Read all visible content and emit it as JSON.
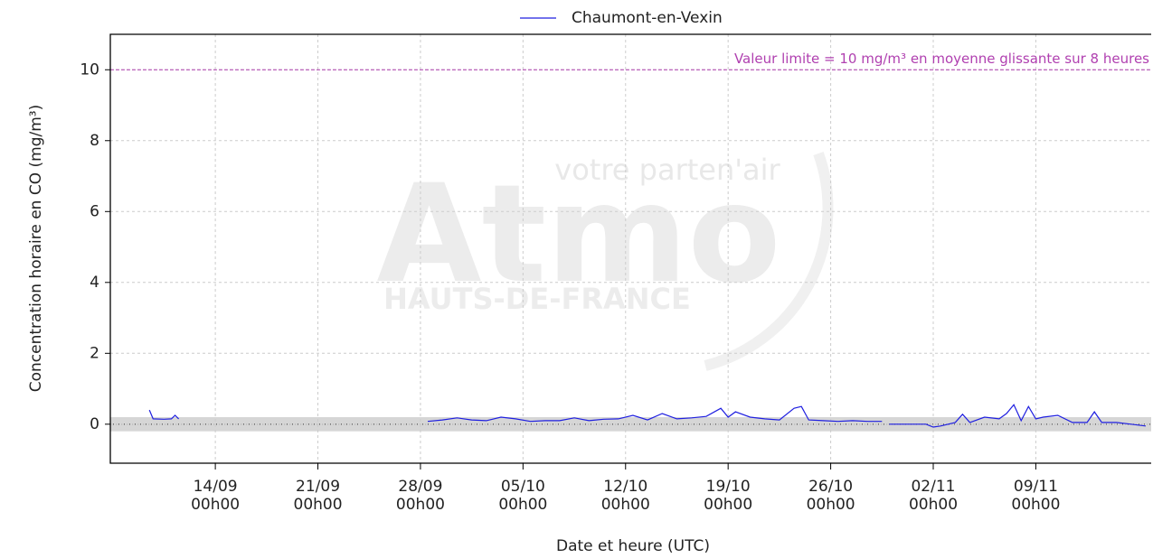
{
  "chart_data": {
    "type": "line",
    "legend": "top",
    "ylabel": "Concentration horaire en CO (mg/m³)",
    "xlabel": "Date et heure (UTC)",
    "watermark": {
      "tagline": "votre parten'air",
      "logo": "Atmo",
      "region": "HAUTS-DE-FRANCE"
    },
    "annotation": {
      "text": "Valeur limite = 10 mg/m³ en moyenne glissante sur 8 heures",
      "value": 10,
      "color": "#b040b0"
    },
    "band": [
      -0.2,
      0.2
    ],
    "grid": true,
    "xlim": [
      "06/09 20h00",
      "16/11 21h00"
    ],
    "ylim": [
      -1.1,
      11
    ],
    "yticks": [
      0,
      2,
      4,
      6,
      8,
      10
    ],
    "xticks": [
      {
        "value": "14/09 00h00",
        "label": [
          "14/09",
          "00h00"
        ]
      },
      {
        "value": "21/09 00h00",
        "label": [
          "21/09",
          "00h00"
        ]
      },
      {
        "value": "28/09 00h00",
        "label": [
          "28/09",
          "00h00"
        ]
      },
      {
        "value": "05/10 00h00",
        "label": [
          "05/10",
          "00h00"
        ]
      },
      {
        "value": "12/10 00h00",
        "label": [
          "12/10",
          "00h00"
        ]
      },
      {
        "value": "19/10 00h00",
        "label": [
          "19/10",
          "00h00"
        ]
      },
      {
        "value": "26/10 00h00",
        "label": [
          "26/10",
          "00h00"
        ]
      },
      {
        "value": "02/11 00h00",
        "label": [
          "02/11",
          "00h00"
        ]
      },
      {
        "value": "09/11 00h00",
        "label": [
          "09/11",
          "00h00"
        ]
      }
    ],
    "x": [
      "09/09 12h00",
      "09/09 18h00",
      "10/09 12h00",
      "11/09 00h00",
      "11/09 06h00",
      "11/09 12h00",
      "12/09 00h00",
      "28/09 12h00",
      "29/09 12h00",
      "30/09 12h00",
      "01/10 12h00",
      "02/10 12h00",
      "03/10 12h00",
      "04/10 12h00",
      "05/10 12h00",
      "06/10 12h00",
      "07/10 12h00",
      "08/10 12h00",
      "09/10 12h00",
      "10/10 12h00",
      "11/10 12h00",
      "12/10 12h00",
      "13/10 12h00",
      "14/10 12h00",
      "15/10 12h00",
      "16/10 12h00",
      "17/10 12h00",
      "18/10 12h00",
      "19/10 00h00",
      "19/10 12h00",
      "20/10 12h00",
      "21/10 12h00",
      "22/10 12h00",
      "23/10 12h00",
      "24/10 00h00",
      "24/10 12h00",
      "25/10 12h00",
      "26/10 12h00",
      "27/10 12h00",
      "28/10 12h00",
      "29/10 12h00",
      "29/10 18h00",
      "30/10 00h00",
      "31/10 12h00",
      "01/11 12h00",
      "02/11 00h00",
      "02/11 12h00",
      "03/11 12h00",
      "04/11 00h00",
      "04/11 12h00",
      "05/11 12h00",
      "06/11 12h00",
      "07/11 00h00",
      "07/11 12h00",
      "08/11 00h00",
      "08/11 12h00",
      "09/11 00h00",
      "09/11 12h00",
      "10/11 12h00",
      "11/11 12h00",
      "12/11 12h00",
      "13/11 00h00",
      "13/11 12h00",
      "14/11 12h00",
      "15/11 12h00",
      "16/11 12h00"
    ],
    "series": [
      {
        "name": "Chaumont-en-Vexin",
        "color": "#1f1fe0",
        "values": [
          0.4,
          0.15,
          0.14,
          0.15,
          0.25,
          0.15,
          null,
          0.08,
          0.12,
          0.18,
          0.12,
          0.1,
          0.2,
          0.15,
          0.08,
          0.1,
          0.1,
          0.18,
          0.1,
          0.14,
          0.15,
          0.25,
          0.12,
          0.3,
          0.15,
          0.18,
          0.22,
          0.45,
          0.2,
          0.35,
          0.2,
          0.15,
          0.12,
          0.45,
          0.5,
          0.12,
          0.1,
          0.08,
          0.1,
          0.08,
          0.08,
          null,
          0.0,
          0.0,
          0.0,
          -0.08,
          -0.05,
          0.05,
          0.28,
          0.05,
          0.2,
          0.15,
          0.3,
          0.55,
          0.1,
          0.5,
          0.15,
          0.2,
          0.25,
          0.05,
          0.05,
          0.35,
          0.05,
          0.05,
          0.0,
          -0.05
        ]
      }
    ]
  }
}
